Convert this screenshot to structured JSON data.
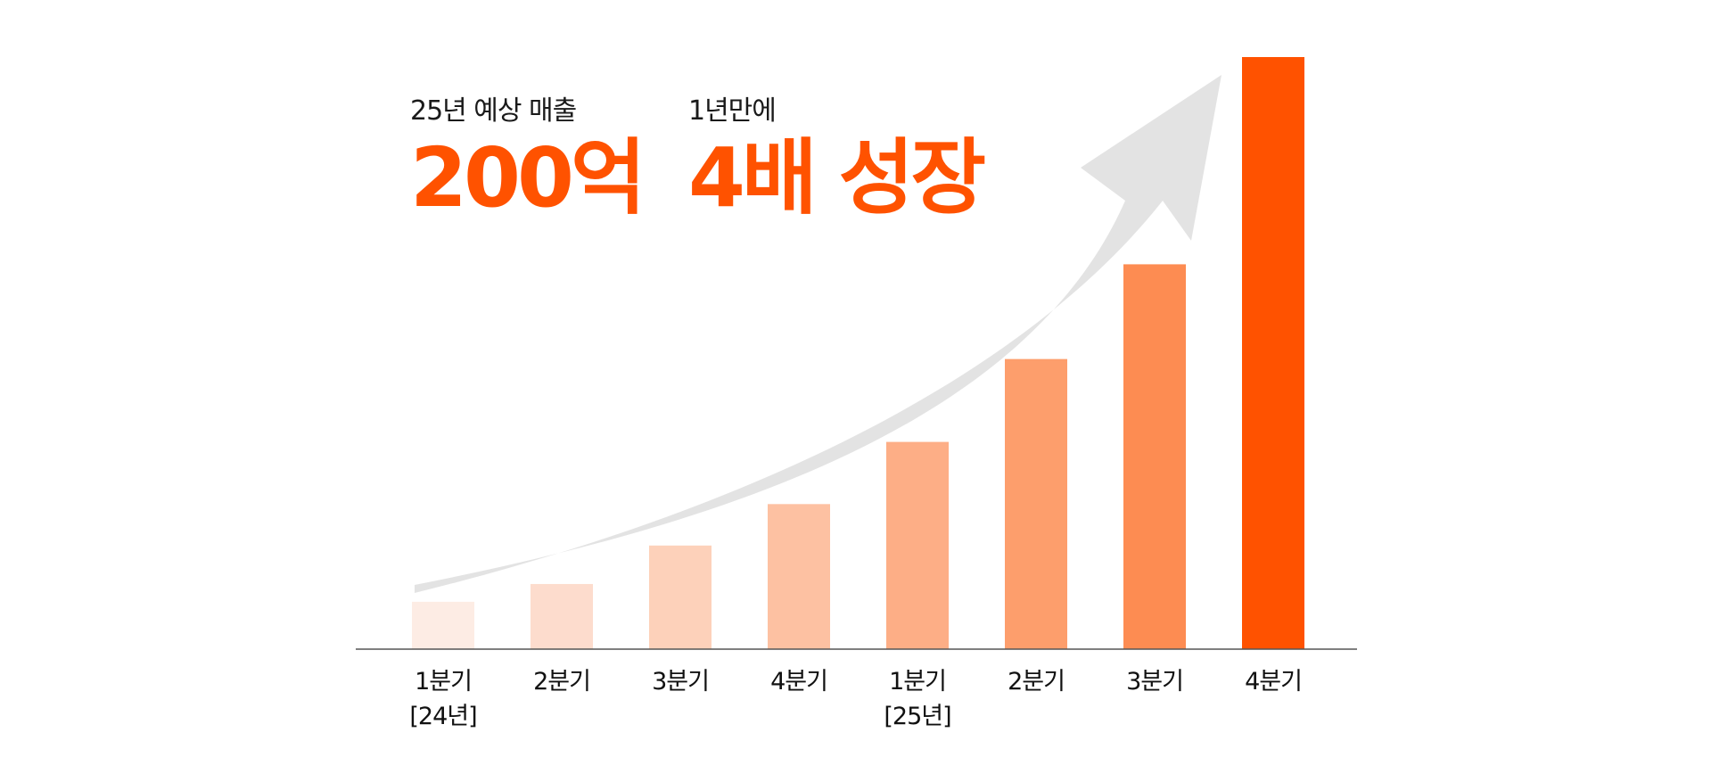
{
  "headline": {
    "left": {
      "caption": "25년 예상 매출",
      "value": "200억"
    },
    "right": {
      "caption": "1년만에",
      "value": "4배 성장"
    }
  },
  "colors": {
    "accent": "#FF5200",
    "arrow": "#E3E3E3",
    "axis": "#555555",
    "bars": [
      "#FDECE4",
      "#FDDCCD",
      "#FDD1BA",
      "#FDC1A2",
      "#FDAE86",
      "#FD9E6C",
      "#FD8C52",
      "#FF5200"
    ]
  },
  "chart_data": {
    "type": "bar",
    "categories": [
      "1분기",
      "2분기",
      "3분기",
      "4분기",
      "1분기",
      "2분기",
      "3분기",
      "4분기"
    ],
    "sublabels": [
      "[24년]",
      "",
      "",
      "",
      "[25년]",
      "",
      "",
      ""
    ],
    "values": [
      8,
      11,
      17.5,
      24.5,
      35,
      49,
      65,
      100
    ],
    "ylim": [
      0,
      100
    ],
    "title": "",
    "xlabel": "",
    "ylabel": "",
    "grid": false,
    "annotation": "upward trend arrow"
  }
}
